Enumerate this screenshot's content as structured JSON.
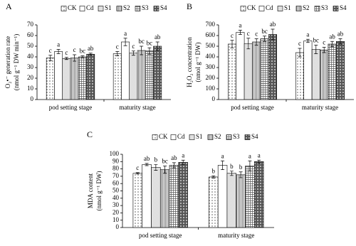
{
  "chart_data": [
    {
      "type": "bar",
      "panel_label": "A",
      "ylabel": [
        "O₂•⁻ generation rate",
        "(nmol g⁻¹ DW min⁻¹)"
      ],
      "categories": [
        "pod setting stage",
        "maturity stage"
      ],
      "ylim": [
        0,
        70
      ],
      "yticks": [
        0,
        10,
        20,
        30,
        40,
        50,
        60,
        70
      ],
      "series": [
        {
          "name": "CK",
          "pattern": "dots",
          "values": [
            39,
            43
          ],
          "errors": [
            2.5,
            2
          ],
          "letters": [
            "c",
            "c"
          ]
        },
        {
          "name": "Cd",
          "pattern": "none",
          "values": [
            45,
            54
          ],
          "errors": [
            2,
            3.5
          ],
          "letters": [
            "a",
            "a"
          ]
        },
        {
          "name": "S1",
          "pattern": "fine-dots",
          "values": [
            38.5,
            43.5
          ],
          "errors": [
            1,
            2
          ],
          "letters": [
            "c",
            "c"
          ]
        },
        {
          "name": "S2",
          "pattern": "vlines",
          "values": [
            39,
            46
          ],
          "errors": [
            3,
            4
          ],
          "letters": [
            "c",
            "bc"
          ]
        },
        {
          "name": "S3",
          "pattern": "grid",
          "values": [
            40,
            45.5
          ],
          "errors": [
            1,
            3
          ],
          "letters": [
            "bc",
            "bc"
          ]
        },
        {
          "name": "S4",
          "pattern": "checker",
          "values": [
            42.5,
            50
          ],
          "errors": [
            1,
            4
          ],
          "letters": [
            "ab",
            "ab"
          ]
        }
      ]
    },
    {
      "type": "bar",
      "panel_label": "B",
      "ylabel": [
        "H₂O₂ concentration",
        "(nmol g⁻¹ DW)"
      ],
      "categories": [
        "pod setting stage",
        "maturity stage"
      ],
      "ylim": [
        0,
        700
      ],
      "yticks": [
        0,
        100,
        200,
        300,
        400,
        500,
        600,
        700
      ],
      "series": [
        {
          "name": "CK",
          "pattern": "dots",
          "values": [
            520,
            440
          ],
          "errors": [
            35,
            40
          ],
          "letters": [
            "c",
            "c"
          ]
        },
        {
          "name": "Cd",
          "pattern": "none",
          "values": [
            630,
            550
          ],
          "errors": [
            20,
            15
          ],
          "letters": [
            "a",
            "a"
          ]
        },
        {
          "name": "S1",
          "pattern": "fine-dots",
          "values": [
            525,
            470
          ],
          "errors": [
            50,
            40
          ],
          "letters": [
            "c",
            "bc"
          ]
        },
        {
          "name": "S2",
          "pattern": "vlines",
          "values": [
            540,
            465
          ],
          "errors": [
            30,
            25
          ],
          "letters": [
            "c",
            "c"
          ]
        },
        {
          "name": "S3",
          "pattern": "grid",
          "values": [
            570,
            520
          ],
          "errors": [
            25,
            25
          ],
          "letters": [
            "bc",
            "ab"
          ]
        },
        {
          "name": "S4",
          "pattern": "checker",
          "values": [
            610,
            545
          ],
          "errors": [
            50,
            25
          ],
          "letters": [
            "ab",
            "ab"
          ]
        }
      ]
    },
    {
      "type": "bar",
      "panel_label": "C",
      "ylabel": [
        "MDA content",
        "(nmol g⁻¹ DW)"
      ],
      "categories": [
        "pod setting stage",
        "maturity stage"
      ],
      "ylim": [
        0,
        100
      ],
      "yticks": [
        0,
        10,
        20,
        30,
        40,
        50,
        60,
        70,
        80,
        90,
        100
      ],
      "series": [
        {
          "name": "CK",
          "pattern": "dots",
          "values": [
            74,
            69
          ],
          "errors": [
            1,
            1.5
          ],
          "letters": [
            "c",
            "b"
          ]
        },
        {
          "name": "Cd",
          "pattern": "none",
          "values": [
            86,
            85
          ],
          "errors": [
            1.5,
            6
          ],
          "letters": [
            "ab",
            "a"
          ]
        },
        {
          "name": "S1",
          "pattern": "fine-dots",
          "values": [
            82,
            74
          ],
          "errors": [
            4,
            3
          ],
          "letters": [
            "b",
            "b"
          ]
        },
        {
          "name": "S2",
          "pattern": "vlines",
          "values": [
            79,
            72
          ],
          "errors": [
            5,
            4
          ],
          "letters": [
            "bc",
            "b"
          ]
        },
        {
          "name": "S3",
          "pattern": "grid",
          "values": [
            85,
            84
          ],
          "errors": [
            3.5,
            7
          ],
          "letters": [
            "ab",
            "a"
          ]
        },
        {
          "name": "S4",
          "pattern": "checker",
          "values": [
            89,
            90
          ],
          "errors": [
            3,
            2
          ],
          "letters": [
            "a",
            "a"
          ]
        }
      ]
    }
  ]
}
